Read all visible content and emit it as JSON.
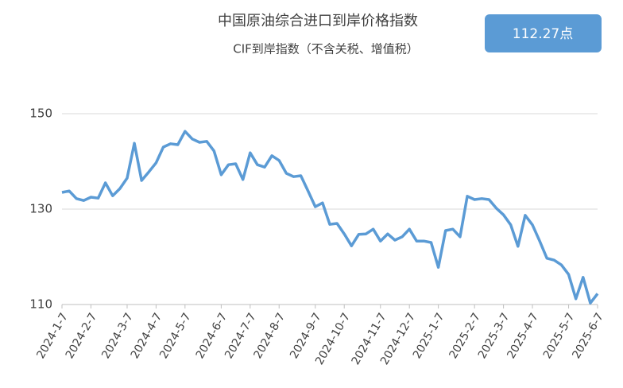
{
  "chart_data": {
    "type": "line",
    "title": "中国原油综合进口到岸价格指数",
    "subtitle": "CIF到岸指数（不含关税、增值税）",
    "annotation": "112.27点",
    "categories": [
      "2024-1-7",
      null,
      null,
      null,
      "2024-2-7",
      null,
      null,
      null,
      null,
      "2024-3-7",
      null,
      null,
      null,
      "2024-4-7",
      null,
      null,
      null,
      "2024-5-7",
      null,
      null,
      null,
      null,
      "2024-6-7",
      null,
      null,
      null,
      "2024-7-7",
      null,
      null,
      null,
      "2024-8-7",
      null,
      null,
      null,
      null,
      "2024-9-7",
      null,
      null,
      null,
      "2024-10-7",
      null,
      null,
      null,
      null,
      "2024-11-7",
      null,
      null,
      null,
      "2024-12-7",
      null,
      null,
      null,
      "2025-1-7",
      null,
      null,
      null,
      null,
      "2025-2-7",
      null,
      null,
      null,
      "2025-3-7",
      null,
      null,
      null,
      "2025-4-7",
      null,
      null,
      null,
      null,
      "2025-5-7",
      null,
      null,
      null,
      "2025-6-7"
    ],
    "values": [
      133.5,
      133.8,
      132.2,
      131.8,
      132.5,
      132.3,
      135.5,
      132.8,
      134.3,
      136.5,
      143.8,
      136,
      137.8,
      139.7,
      143,
      143.7,
      143.5,
      146.3,
      144.7,
      144,
      144.2,
      142.2,
      137.2,
      139.3,
      139.5,
      136.2,
      141.8,
      139.3,
      138.8,
      141.2,
      140.2,
      137.5,
      136.8,
      137,
      133.8,
      130.5,
      131.3,
      126.8,
      127,
      124.8,
      122.3,
      124.7,
      124.8,
      125.8,
      123.3,
      124.8,
      123.5,
      124.2,
      125.8,
      123.3,
      123.3,
      123,
      117.8,
      125.5,
      125.8,
      124.2,
      132.7,
      132,
      132.2,
      132,
      130.2,
      128.8,
      126.7,
      122.2,
      128.7,
      126.7,
      123.3,
      119.7,
      119.3,
      118.3,
      116.3,
      111.2,
      115.7,
      110.3,
      112.27
    ],
    "color": "#5b9bd5",
    "ylim": [
      110,
      150
    ],
    "yticks": [
      110,
      130,
      150
    ],
    "grid": true
  }
}
